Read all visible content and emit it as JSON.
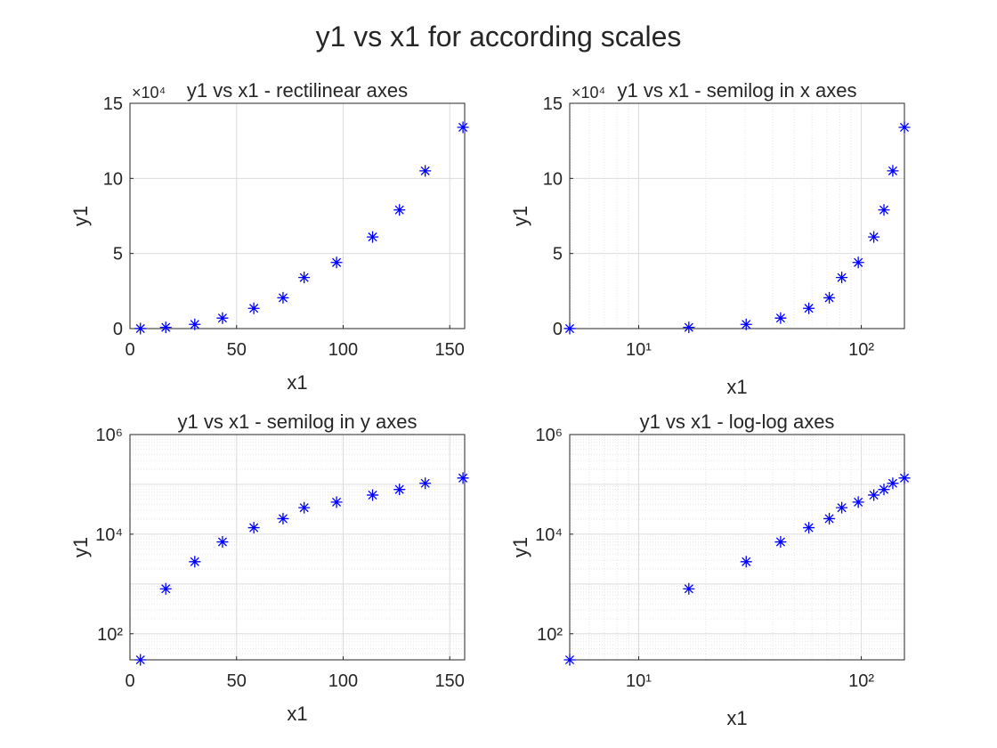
{
  "figure": {
    "title": "y1 vs x1 for according scales"
  },
  "colors": {
    "marker": "#0000ff",
    "axis": "#262626",
    "grid_major": "#dcdcdc",
    "grid_minor": "#e6e6e6",
    "background": "#ffffff"
  },
  "chart_data": [
    {
      "type": "scatter",
      "title": "y1 vs x1 - rectilinear axes",
      "xlabel": "x1",
      "ylabel": "y1",
      "xscale": "linear",
      "yscale": "linear",
      "xlim": [
        0,
        157
      ],
      "ylim": [
        0,
        150000
      ],
      "xticks": [
        0,
        50,
        100,
        150
      ],
      "xticklabels": [
        "0",
        "50",
        "100",
        "150"
      ],
      "yticks": [
        0,
        50000,
        100000,
        150000
      ],
      "yticklabels": [
        "0",
        "5",
        "10",
        "15"
      ],
      "exponent_label": "×10⁴",
      "grid": "major",
      "marker": "asterisk",
      "series": [
        {
          "x": [
            4.9,
            16.8,
            30.4,
            43.4,
            58.1,
            71.8,
            81.7,
            96.9,
            113.8,
            126.4,
            138.5,
            156.2
          ],
          "y": [
            30,
            800,
            2800,
            7000,
            13500,
            20500,
            34000,
            44000,
            61000,
            79000,
            105000,
            134000
          ]
        }
      ]
    },
    {
      "type": "scatter",
      "title": "y1 vs x1 - semilog in x axes",
      "xlabel": "x1",
      "ylabel": "y1",
      "xscale": "log",
      "yscale": "linear",
      "xlim": [
        4.9,
        156.2
      ],
      "ylim": [
        0,
        150000
      ],
      "xticks": [
        10,
        100
      ],
      "xticklabels": [
        "10¹",
        "10²"
      ],
      "yticks": [
        0,
        50000,
        100000,
        150000
      ],
      "yticklabels": [
        "0",
        "5",
        "10",
        "15"
      ],
      "exponent_label": "×10⁴",
      "grid": "major+minor-x",
      "marker": "asterisk",
      "series": [
        {
          "x": [
            4.9,
            16.8,
            30.4,
            43.4,
            58.1,
            71.8,
            81.7,
            96.9,
            113.8,
            126.4,
            138.5,
            156.2
          ],
          "y": [
            30,
            800,
            2800,
            7000,
            13500,
            20500,
            34000,
            44000,
            61000,
            79000,
            105000,
            134000
          ]
        }
      ]
    },
    {
      "type": "scatter",
      "title": "y1 vs x1 - semilog in y axes",
      "xlabel": "x1",
      "ylabel": "y1",
      "xscale": "linear",
      "yscale": "log",
      "xlim": [
        0,
        157
      ],
      "ylim": [
        30,
        1000000
      ],
      "xticks": [
        0,
        50,
        100,
        150
      ],
      "xticklabels": [
        "0",
        "50",
        "100",
        "150"
      ],
      "yticks": [
        100,
        10000,
        1000000
      ],
      "yticklabels": [
        "10²",
        "10⁴",
        "10⁶"
      ],
      "grid": "major+minor-y",
      "marker": "asterisk",
      "series": [
        {
          "x": [
            4.9,
            16.8,
            30.4,
            43.4,
            58.1,
            71.8,
            81.7,
            96.9,
            113.8,
            126.4,
            138.5,
            156.2
          ],
          "y": [
            30,
            800,
            2800,
            7000,
            13500,
            20500,
            34000,
            44000,
            61000,
            79000,
            105000,
            134000
          ]
        }
      ]
    },
    {
      "type": "scatter",
      "title": "y1 vs x1 - log-log axes",
      "xlabel": "x1",
      "ylabel": "y1",
      "xscale": "log",
      "yscale": "log",
      "xlim": [
        4.9,
        156.2
      ],
      "ylim": [
        30,
        1000000
      ],
      "xticks": [
        10,
        100
      ],
      "xticklabels": [
        "10¹",
        "10²"
      ],
      "yticks": [
        100,
        10000,
        1000000
      ],
      "yticklabels": [
        "10²",
        "10⁴",
        "10⁶"
      ],
      "grid": "major+minor",
      "marker": "asterisk",
      "series": [
        {
          "x": [
            4.9,
            16.8,
            30.4,
            43.4,
            58.1,
            71.8,
            81.7,
            96.9,
            113.8,
            126.4,
            138.5,
            156.2
          ],
          "y": [
            30,
            800,
            2800,
            7000,
            13500,
            20500,
            34000,
            44000,
            61000,
            79000,
            105000,
            134000
          ]
        }
      ]
    }
  ]
}
